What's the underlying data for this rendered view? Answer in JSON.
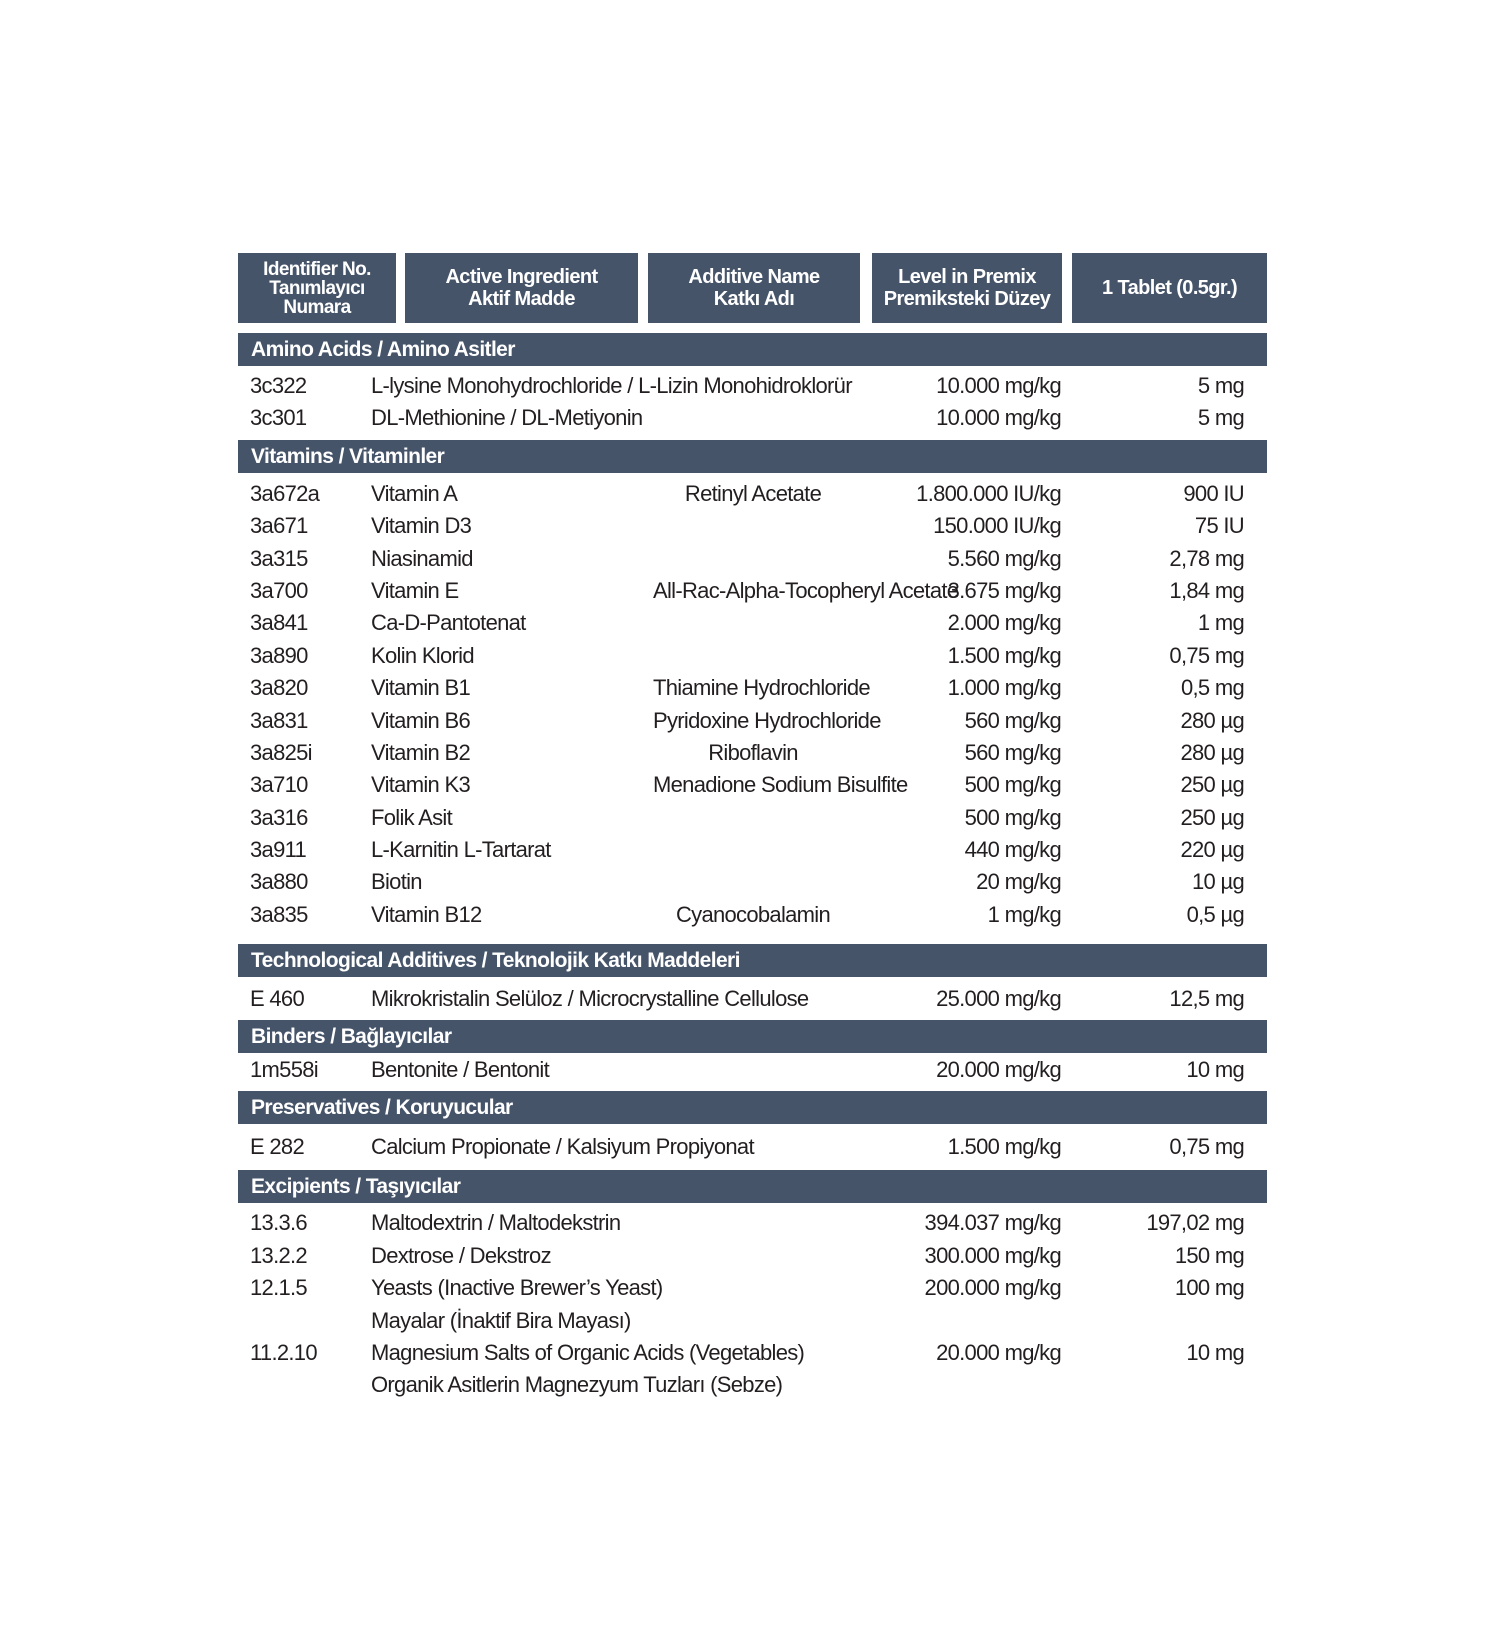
{
  "header": {
    "columns": [
      {
        "lines": [
          "Identifier No.",
          "Tanımlayıcı",
          "Numara"
        ]
      },
      {
        "lines": [
          "Active Ingredient",
          "Aktif Madde"
        ]
      },
      {
        "lines": [
          "Additive Name",
          "Katkı Adı"
        ]
      },
      {
        "lines": [
          "Level in Premix",
          "Premiksteki Düzey"
        ]
      },
      {
        "lines": [
          "1 Tablet (0.5gr.)"
        ]
      }
    ]
  },
  "colors": {
    "header_bg": "#46546a",
    "text": "#231f20"
  },
  "sections": [
    {
      "title": "Amino Acids / Amino Asitler",
      "rows": [
        {
          "id": "3c322",
          "active": "L-lysine Monohydrochloride / L-Lizin Monohidroklorür",
          "additive": "",
          "level": "10.000 mg/kg",
          "tablet": "5 mg"
        },
        {
          "id": "3c301",
          "active": "DL-Methionine / DL-Metiyonin",
          "additive": "",
          "level": "10.000 mg/kg",
          "tablet": "5 mg"
        }
      ]
    },
    {
      "title": "Vitamins / Vitaminler",
      "rows": [
        {
          "id": "3a672a",
          "active": "Vitamin A",
          "additive": "Retinyl Acetate",
          "level": "1.800.000 IU/kg",
          "tablet": "900 IU"
        },
        {
          "id": "3a671",
          "active": "Vitamin D3",
          "additive": "",
          "level": "150.000 IU/kg",
          "tablet": "75 IU"
        },
        {
          "id": "3a315",
          "active": "Niasinamid",
          "additive": "",
          "level": "5.560 mg/kg",
          "tablet": "2,78 mg"
        },
        {
          "id": "3a700",
          "active": "Vitamin E",
          "additive": "All-Rac-Alpha-Tocopheryl Acetate",
          "level": "3.675 mg/kg",
          "tablet": "1,84 mg"
        },
        {
          "id": "3a841",
          "active": "Ca-D-Pantotenat",
          "additive": "",
          "level": "2.000 mg/kg",
          "tablet": "1 mg"
        },
        {
          "id": "3a890",
          "active": "Kolin Klorid",
          "additive": "",
          "level": "1.500 mg/kg",
          "tablet": "0,75 mg"
        },
        {
          "id": "3a820",
          "active": "Vitamin B1",
          "additive": "Thiamine Hydrochloride",
          "level": "1.000 mg/kg",
          "tablet": "0,5 mg"
        },
        {
          "id": "3a831",
          "active": "Vitamin B6",
          "additive": "Pyridoxine Hydrochloride",
          "level": "560 mg/kg",
          "tablet": "280 µg"
        },
        {
          "id": "3a825i",
          "active": "Vitamin B2",
          "additive": "Riboflavin",
          "level": "560 mg/kg",
          "tablet": "280 µg"
        },
        {
          "id": "3a710",
          "active": "Vitamin K3",
          "additive": "Menadione Sodium Bisulfite",
          "level": "500 mg/kg",
          "tablet": "250 µg"
        },
        {
          "id": "3a316",
          "active": "Folik Asit",
          "additive": "",
          "level": "500 mg/kg",
          "tablet": "250 µg"
        },
        {
          "id": "3a911",
          "active": "L-Karnitin L-Tartarat",
          "additive": "",
          "level": "440 mg/kg",
          "tablet": "220 µg"
        },
        {
          "id": "3a880",
          "active": "Biotin",
          "additive": "",
          "level": "20 mg/kg",
          "tablet": "10 µg"
        },
        {
          "id": "3a835",
          "active": "Vitamin B12",
          "additive": "Cyanocobalamin",
          "level": "1 mg/kg",
          "tablet": "0,5 µg"
        }
      ]
    },
    {
      "title": "Technological Additives / Teknolojik Katkı Maddeleri",
      "rows": [
        {
          "id": "E 460",
          "active": "Mikrokristalin Selüloz / Microcrystalline Cellulose",
          "additive": "",
          "level": "25.000 mg/kg",
          "tablet": "12,5 mg"
        }
      ]
    },
    {
      "title": "Binders / Bağlayıcılar",
      "rows": [
        {
          "id": "1m558i",
          "active": "Bentonite / Bentonit",
          "additive": "",
          "level": "20.000 mg/kg",
          "tablet": "10 mg"
        }
      ]
    },
    {
      "title": "Preservatives / Koruyucular",
      "rows": [
        {
          "id": "E 282",
          "active": "Calcium Propionate / Kalsiyum Propiyonat",
          "additive": "",
          "level": "1.500 mg/kg",
          "tablet": "0,75 mg"
        }
      ]
    },
    {
      "title": "Excipients / Taşıyıcılar",
      "rows": [
        {
          "id": "13.3.6",
          "active": "Maltodextrin / Maltodekstrin",
          "additive": "",
          "level": "394.037 mg/kg",
          "tablet": "197,02 mg"
        },
        {
          "id": "13.2.2",
          "active": "Dextrose / Dekstroz",
          "additive": "",
          "level": "300.000 mg/kg",
          "tablet": "150 mg"
        },
        {
          "id": "12.1.5",
          "active": "Yeasts (Inactive Brewer’s Yeast)",
          "additive": "",
          "level": "200.000 mg/kg",
          "tablet": "100 mg"
        },
        {
          "id": "",
          "active": "Mayalar (İnaktif Bira Mayası)",
          "additive": "",
          "level": "",
          "tablet": ""
        },
        {
          "id": "11.2.10",
          "active": "Magnesium Salts of Organic Acids (Vegetables)",
          "additive": "",
          "level": "20.000 mg/kg",
          "tablet": "10 mg"
        },
        {
          "id": "",
          "active": "Organik Asitlerin Magnezyum Tuzları (Sebze)",
          "additive": "",
          "level": "",
          "tablet": ""
        }
      ]
    }
  ]
}
